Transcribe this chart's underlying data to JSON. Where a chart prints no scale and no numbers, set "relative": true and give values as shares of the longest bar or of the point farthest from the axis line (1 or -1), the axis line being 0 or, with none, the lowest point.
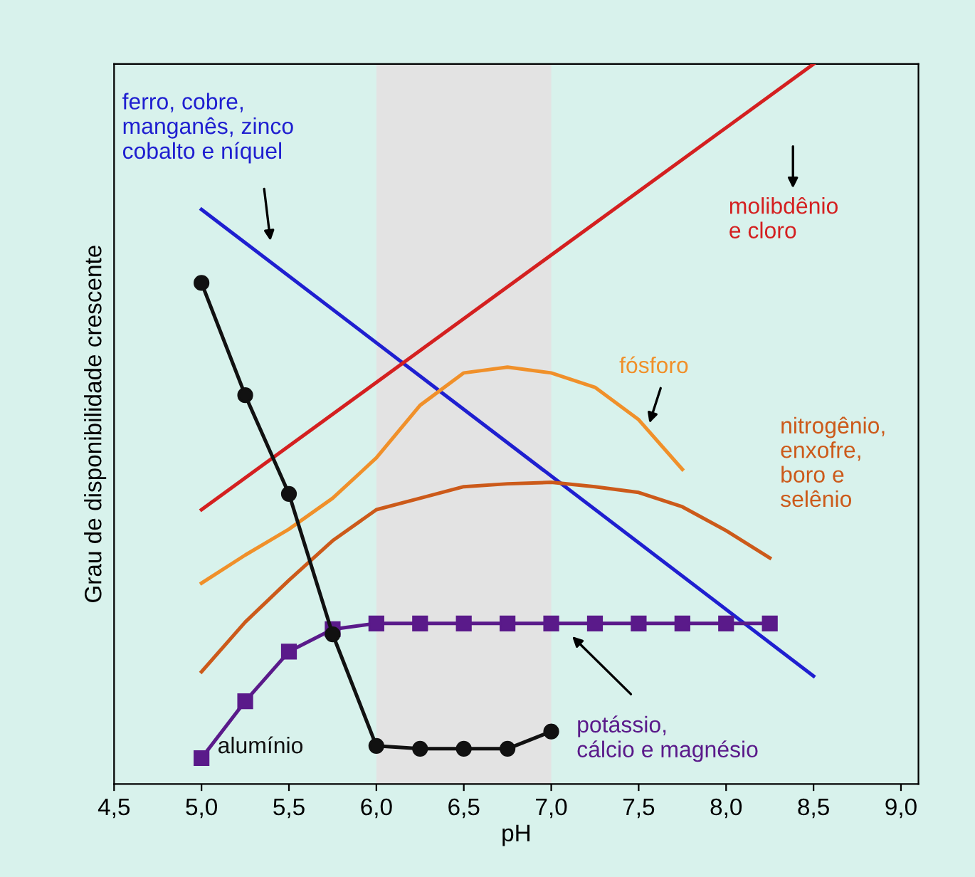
{
  "chart_data": {
    "type": "line",
    "relative": true,
    "xlabel": "pH",
    "ylabel": "Grau de disponibilidade crescente",
    "xlim": [
      4.5,
      9.1
    ],
    "xticks": [
      {
        "value": 4.5,
        "label": "4,5"
      },
      {
        "value": 5.0,
        "label": "5,0"
      },
      {
        "value": 5.5,
        "label": "5,5"
      },
      {
        "value": 6.0,
        "label": "6,0"
      },
      {
        "value": 6.5,
        "label": "6,5"
      },
      {
        "value": 7.0,
        "label": "7,0"
      },
      {
        "value": 7.5,
        "label": "7,5"
      },
      {
        "value": 8.0,
        "label": "8,0"
      },
      {
        "value": 8.5,
        "label": "8,5"
      },
      {
        "value": 9.0,
        "label": "9,0"
      }
    ],
    "tick_labels": "x",
    "grid": false,
    "legend": false,
    "bands": [
      {
        "axis": "x",
        "from": 6.0,
        "to": 7.0,
        "color": "#e3e3e3"
      }
    ],
    "series": [
      {
        "name": "ferro, cobre,\nmanganês, zinco\ncobalto e níquel",
        "color": "#1f1fd0",
        "x": [
          5.0,
          8.5
        ],
        "values": [
          0.798,
          0.15
        ],
        "marker": "none"
      },
      {
        "name": "molibdênio\ne cloro",
        "color": "#d42020",
        "x": [
          5.0,
          8.5
        ],
        "values": [
          0.381,
          1.0
        ],
        "marker": "none"
      },
      {
        "name": "fósforo",
        "color": "#f0902a",
        "x": [
          5.0,
          5.25,
          5.5,
          5.75,
          6.0,
          6.25,
          6.5,
          6.75,
          7.0,
          7.25,
          7.5,
          7.75
        ],
        "values": [
          0.279,
          0.318,
          0.354,
          0.397,
          0.453,
          0.526,
          0.571,
          0.579,
          0.571,
          0.551,
          0.506,
          0.437
        ],
        "marker": "none"
      },
      {
        "name": "nitrogênio,\nenxofre,\nboro e\nselênio",
        "color": "#cc5a1a",
        "x": [
          5.0,
          5.25,
          5.5,
          5.75,
          6.0,
          6.25,
          6.5,
          6.75,
          7.0,
          7.25,
          7.5,
          7.75,
          8.0,
          8.25
        ],
        "values": [
          0.156,
          0.225,
          0.283,
          0.338,
          0.381,
          0.397,
          0.413,
          0.417,
          0.419,
          0.413,
          0.405,
          0.385,
          0.352,
          0.314
        ],
        "marker": "none"
      },
      {
        "name": "potássio,\ncálcio e magnésio",
        "color": "#5a1a8a",
        "x": [
          5.0,
          5.25,
          5.5,
          5.75,
          6.0,
          6.25,
          6.5,
          6.75,
          7.0,
          7.25,
          7.5,
          7.75,
          8.0,
          8.25
        ],
        "values": [
          0.036,
          0.115,
          0.184,
          0.215,
          0.223,
          0.223,
          0.223,
          0.223,
          0.223,
          0.223,
          0.223,
          0.223,
          0.223,
          0.223
        ],
        "marker": "square"
      },
      {
        "name": "alumínio",
        "color": "#111111",
        "x": [
          5.0,
          5.25,
          5.5,
          5.75,
          6.0,
          6.25,
          6.5,
          6.75,
          7.0
        ],
        "values": [
          0.696,
          0.54,
          0.403,
          0.208,
          0.053,
          0.049,
          0.049,
          0.049,
          0.073
        ],
        "marker": "circle"
      }
    ]
  }
}
